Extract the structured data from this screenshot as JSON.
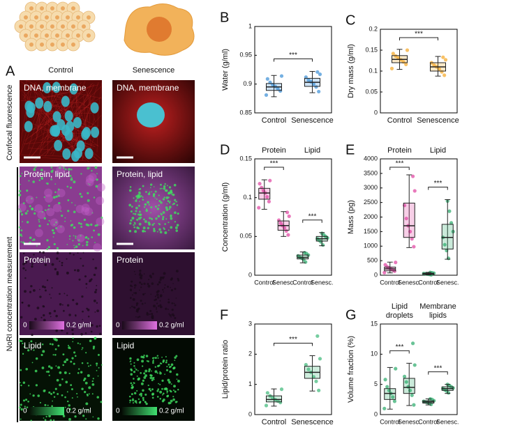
{
  "figure": {
    "panel_a": "A",
    "columns": [
      "Control",
      "Senescence"
    ],
    "row_titles": [
      "Confocal fluorescence",
      "NoRI concentration measurement"
    ],
    "image_labels": [
      [
        "DNA, membrane",
        "DNA, membrane"
      ],
      [
        "Protein, lipid",
        "Protein, lipid"
      ],
      [
        "Protein",
        "Protein"
      ],
      [
        "Lipid",
        "Lipid"
      ]
    ],
    "colorbar_labels": [
      "0",
      "0.2 g/ml"
    ]
  },
  "chart_data": [
    {
      "type": "box",
      "panel": "B",
      "y_label": "Water (g/ml)",
      "categories": [
        "Control",
        "Senescence"
      ],
      "colors": [
        "#3b8fd6",
        "#3b8fd6"
      ],
      "ylim": [
        0.85,
        1
      ],
      "yticks": [
        0.85,
        0.9,
        0.95,
        1
      ],
      "significance": [
        "***"
      ],
      "boxes": [
        {
          "min": 0.878,
          "q1": 0.889,
          "median": 0.895,
          "q3": 0.901,
          "max": 0.915,
          "points": [
            0.881,
            0.888,
            0.892,
            0.896,
            0.899,
            0.903,
            0.909,
            0.914
          ]
        },
        {
          "min": 0.885,
          "q1": 0.896,
          "median": 0.903,
          "q3": 0.91,
          "max": 0.922,
          "points": [
            0.887,
            0.895,
            0.9,
            0.904,
            0.907,
            0.912,
            0.917,
            0.921
          ]
        }
      ]
    },
    {
      "type": "box",
      "panel": "C",
      "y_label": "Dry mass (g/ml)",
      "categories": [
        "Control",
        "Senescence"
      ],
      "colors": [
        "#f5a623",
        "#f5a623"
      ],
      "ylim": [
        0,
        0.2
      ],
      "yticks": [
        0,
        0.05,
        0.1,
        0.15,
        0.2
      ],
      "significance": [
        "***"
      ],
      "boxes": [
        {
          "min": 0.104,
          "q1": 0.12,
          "median": 0.128,
          "q3": 0.137,
          "max": 0.152,
          "points": [
            0.106,
            0.116,
            0.122,
            0.127,
            0.131,
            0.136,
            0.142,
            0.15
          ]
        },
        {
          "min": 0.088,
          "q1": 0.1,
          "median": 0.11,
          "q3": 0.12,
          "max": 0.135,
          "points": [
            0.09,
            0.098,
            0.105,
            0.11,
            0.114,
            0.12,
            0.127,
            0.133
          ]
        }
      ]
    },
    {
      "type": "box",
      "panel": "D",
      "y_label": "Concentration (g/ml)",
      "categories": [
        "Control",
        "Senesc.",
        "Control",
        "Senesc."
      ],
      "colors": [
        "#e040a0",
        "#e040a0",
        "#2aaa6a",
        "#2aaa6a"
      ],
      "group_labels": [
        [
          "Protein"
        ],
        [
          "Lipid"
        ]
      ],
      "ylim": [
        0,
        0.15
      ],
      "yticks": [
        0,
        0.05,
        0.1,
        0.15
      ],
      "significance": [
        "***",
        "***"
      ],
      "boxes": [
        {
          "min": 0.085,
          "q1": 0.098,
          "median": 0.106,
          "q3": 0.112,
          "max": 0.123,
          "points": [
            0.087,
            0.095,
            0.101,
            0.106,
            0.109,
            0.113,
            0.118,
            0.122
          ]
        },
        {
          "min": 0.05,
          "q1": 0.058,
          "median": 0.064,
          "q3": 0.07,
          "max": 0.082,
          "points": [
            0.052,
            0.057,
            0.061,
            0.064,
            0.067,
            0.071,
            0.076,
            0.081
          ]
        },
        {
          "min": 0.016,
          "q1": 0.021,
          "median": 0.023,
          "q3": 0.026,
          "max": 0.03,
          "points": [
            0.017,
            0.02,
            0.022,
            0.023,
            0.025,
            0.026,
            0.028,
            0.029
          ]
        },
        {
          "min": 0.038,
          "q1": 0.044,
          "median": 0.047,
          "q3": 0.05,
          "max": 0.055,
          "points": [
            0.039,
            0.043,
            0.045,
            0.047,
            0.048,
            0.05,
            0.052,
            0.054
          ]
        }
      ]
    },
    {
      "type": "box",
      "panel": "E",
      "y_label": "Mass (pg)",
      "categories": [
        "Control",
        "Senesc.",
        "Control",
        "Senesc."
      ],
      "colors": [
        "#e040a0",
        "#e040a0",
        "#2aaa6a",
        "#2aaa6a"
      ],
      "group_labels": [
        [
          "Protein"
        ],
        [
          "Lipid"
        ]
      ],
      "ylim": [
        0,
        4000
      ],
      "yticks": [
        0,
        500,
        1000,
        1500,
        2000,
        2500,
        3000,
        3500,
        4000
      ],
      "significance": [
        "***",
        "***"
      ],
      "boxes": [
        {
          "min": 80,
          "q1": 150,
          "median": 220,
          "q3": 280,
          "max": 450,
          "points": [
            90,
            140,
            180,
            220,
            250,
            290,
            360,
            440
          ]
        },
        {
          "min": 950,
          "q1": 1300,
          "median": 1700,
          "q3": 2480,
          "max": 3450,
          "points": [
            980,
            1250,
            1500,
            1700,
            1950,
            2400,
            2900,
            3400
          ]
        },
        {
          "min": 10,
          "q1": 30,
          "median": 50,
          "q3": 70,
          "max": 100,
          "points": [
            15,
            30,
            40,
            50,
            60,
            70,
            85,
            95
          ]
        },
        {
          "min": 550,
          "q1": 900,
          "median": 1300,
          "q3": 1750,
          "max": 2600,
          "points": [
            580,
            850,
            1050,
            1300,
            1500,
            1800,
            2200,
            2550
          ]
        }
      ]
    },
    {
      "type": "box",
      "panel": "F",
      "y_label": "Lipid/protein ratio",
      "categories": [
        "Control",
        "Senescence"
      ],
      "colors": [
        "#3cb878",
        "#3cb878"
      ],
      "ylim": [
        0,
        3
      ],
      "yticks": [
        0,
        1,
        2,
        3
      ],
      "significance": [
        "***"
      ],
      "boxes": [
        {
          "min": 0.28,
          "q1": 0.42,
          "median": 0.5,
          "q3": 0.62,
          "max": 0.85,
          "points": [
            0.3,
            0.4,
            0.45,
            0.5,
            0.55,
            0.62,
            0.72,
            0.84
          ]
        },
        {
          "min": 0.78,
          "q1": 1.2,
          "median": 1.4,
          "q3": 1.6,
          "max": 1.95,
          "points": [
            0.8,
            1.1,
            1.25,
            1.4,
            1.5,
            1.65,
            1.85,
            2.6
          ]
        }
      ]
    },
    {
      "type": "box",
      "panel": "G",
      "y_label": "Volume fraction (%)",
      "categories": [
        "Control",
        "Senesc.",
        "Control",
        "Senesc."
      ],
      "colors": [
        "#2aaa6a",
        "#2aaa6a",
        "#2aaa6a",
        "#2aaa6a"
      ],
      "group_labels": [
        [
          "Lipid",
          "droplets"
        ],
        [
          "Membrane",
          "lipids"
        ]
      ],
      "ylim": [
        0,
        15
      ],
      "yticks": [
        0,
        5,
        10,
        15
      ],
      "significance": [
        "***",
        "***"
      ],
      "boxes": [
        {
          "min": 0.9,
          "q1": 2.5,
          "median": 3.5,
          "q3": 4.3,
          "max": 7.8,
          "points": [
            1,
            2.2,
            2.9,
            3.5,
            4,
            4.6,
            5.8,
            7.6
          ]
        },
        {
          "min": 1.5,
          "q1": 3.5,
          "median": 4.5,
          "q3": 6,
          "max": 8.5,
          "points": [
            1.6,
            3.2,
            4,
            4.6,
            5.4,
            6.3,
            8.2,
            11.8
          ]
        },
        {
          "min": 1.6,
          "q1": 1.9,
          "median": 2.1,
          "q3": 2.3,
          "max": 2.6,
          "points": [
            1.7,
            1.9,
            2,
            2.1,
            2.2,
            2.3,
            2.5,
            2.6
          ]
        },
        {
          "min": 3.5,
          "q1": 4,
          "median": 4.3,
          "q3": 4.6,
          "max": 5,
          "points": [
            3.6,
            3.9,
            4.1,
            4.3,
            4.4,
            4.6,
            4.8,
            5
          ]
        }
      ]
    }
  ]
}
